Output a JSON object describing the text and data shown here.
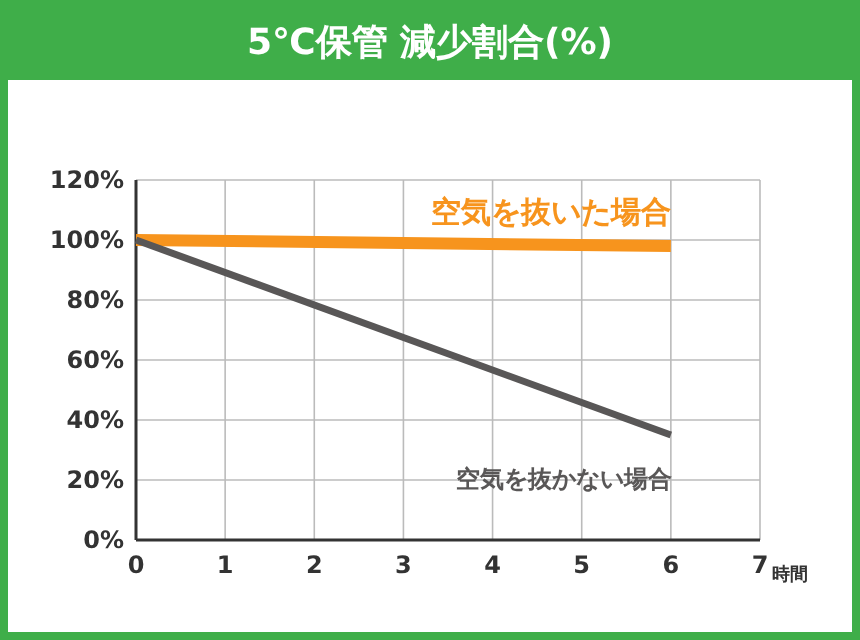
{
  "chart_data": {
    "type": "line",
    "title": "5℃保管 減少割合(%)",
    "xlabel": "時間",
    "xlim": [
      0,
      7
    ],
    "xticks": [
      0,
      1,
      2,
      3,
      4,
      5,
      6,
      7
    ],
    "ylim": [
      0,
      120
    ],
    "yticks": [
      {
        "value": 0,
        "label": "0%"
      },
      {
        "value": 20,
        "label": "20%"
      },
      {
        "value": 40,
        "label": "40%"
      },
      {
        "value": 60,
        "label": "60%"
      },
      {
        "value": 80,
        "label": "80%"
      },
      {
        "value": 100,
        "label": "100%"
      },
      {
        "value": 120,
        "label": "120%"
      }
    ],
    "grid": true,
    "legend": false,
    "marker": "none",
    "x": [
      0,
      6
    ],
    "line_style": "solid",
    "series": [
      {
        "name": "空気を抜いた場合",
        "color": "#f7941d",
        "values": [
          100,
          98
        ]
      },
      {
        "name": "空気を抜かない場合",
        "color": "#595757",
        "values": [
          100,
          35
        ]
      }
    ]
  }
}
